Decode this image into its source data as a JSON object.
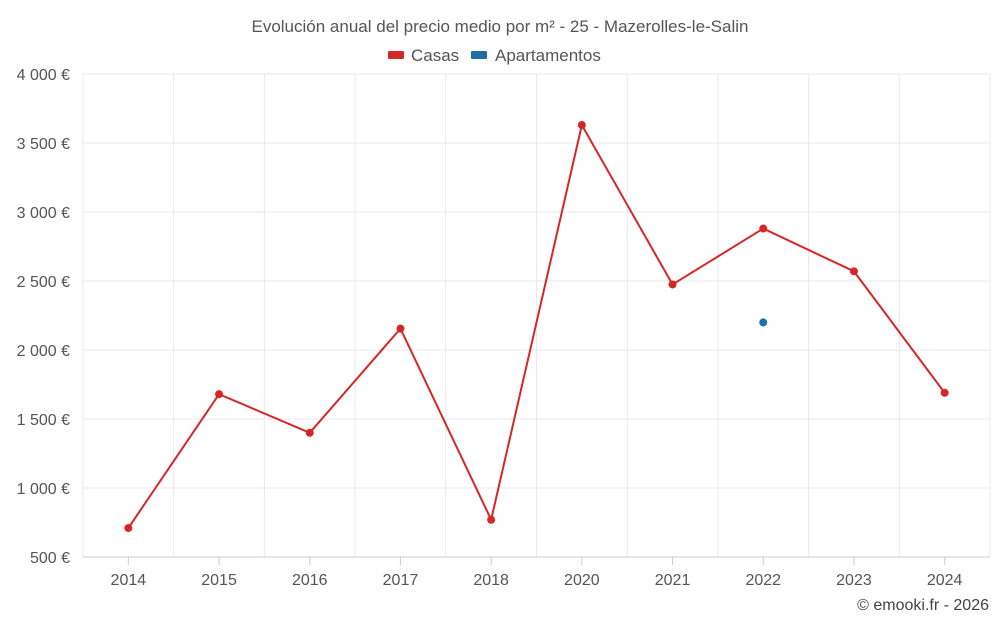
{
  "chart_data": {
    "type": "line",
    "title": "Evolución anual del precio medio por m² - 25 - Mazerolles-le-Salin",
    "categories": [
      "2014",
      "2015",
      "2016",
      "2017",
      "2018",
      "2020",
      "2021",
      "2022",
      "2023",
      "2024"
    ],
    "series": [
      {
        "name": "Casas",
        "color": "#d62728",
        "values": [
          710,
          1680,
          1400,
          2155,
          770,
          3630,
          2475,
          2880,
          2570,
          1690
        ]
      },
      {
        "name": "Apartamentos",
        "color": "#1f6fa4",
        "values": [
          null,
          null,
          null,
          null,
          null,
          null,
          null,
          2200,
          null,
          null
        ]
      }
    ],
    "ylim": [
      500,
      4000
    ],
    "yticks": [
      500,
      1000,
      1500,
      2000,
      2500,
      3000,
      3500,
      4000
    ],
    "ytick_labels": [
      "500 €",
      "1 000 €",
      "1 500 €",
      "2 000 €",
      "2 500 €",
      "3 000 €",
      "3 500 €",
      "4 000 €"
    ],
    "xlabel": "",
    "ylabel": "",
    "legend_position": "top-center",
    "grid": true
  },
  "credit": "© emooki.fr - 2026"
}
